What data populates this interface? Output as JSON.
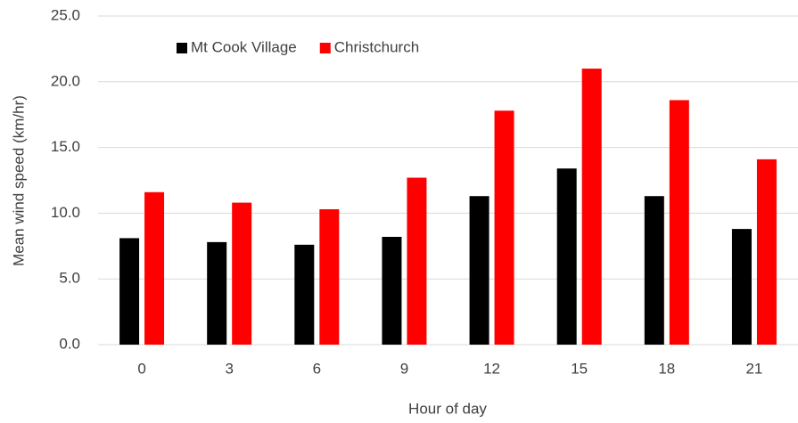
{
  "chart_data": {
    "type": "bar",
    "x_label": "Hour of day",
    "y_label": "Mean wind speed (km/hr)",
    "categories": [
      "0",
      "3",
      "6",
      "9",
      "12",
      "15",
      "18",
      "21"
    ],
    "series": [
      {
        "name": "Mt Cook Village",
        "color": "#000000",
        "values": [
          8.1,
          7.8,
          7.6,
          8.2,
          11.3,
          13.4,
          11.3,
          8.8
        ]
      },
      {
        "name": "Christchurch",
        "color": "#ff0000",
        "values": [
          11.6,
          10.8,
          10.3,
          12.7,
          17.8,
          21.0,
          18.6,
          14.1
        ]
      }
    ],
    "ylim": [
      0,
      25
    ],
    "yticks": [
      {
        "value": 0,
        "label": "0.0"
      },
      {
        "value": 5,
        "label": "5.0"
      },
      {
        "value": 10,
        "label": "10.0"
      },
      {
        "value": 15,
        "label": "15.0"
      },
      {
        "value": 20,
        "label": "20.0"
      },
      {
        "value": 25,
        "label": "25.0"
      }
    ],
    "grid": true,
    "legend": "top-left"
  }
}
